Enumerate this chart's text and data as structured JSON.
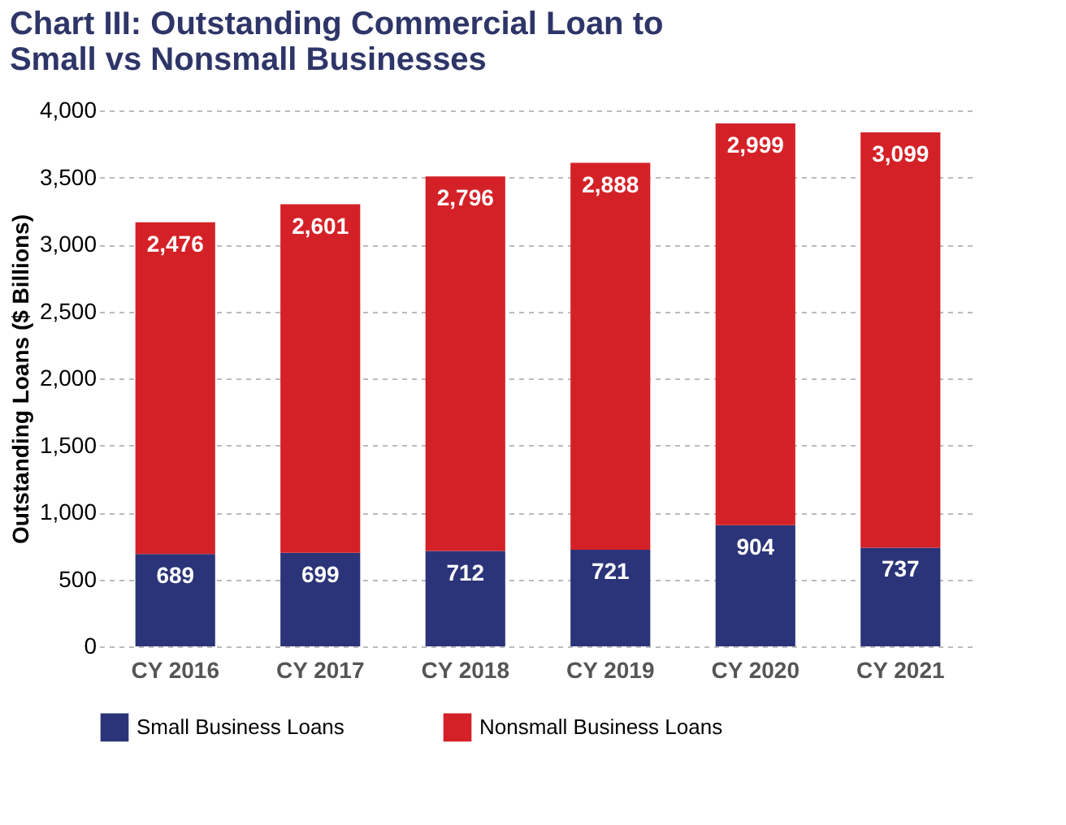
{
  "chart_data": {
    "type": "bar",
    "title": "Chart III: Outstanding Commercial Loan to Small vs Nonsmall Businesses",
    "ylabel": "Outstanding Loans ($ Billions)",
    "categories": [
      "CY 2016",
      "CY 2017",
      "CY 2018",
      "CY 2019",
      "CY 2020",
      "CY 2021"
    ],
    "series": [
      {
        "name": "Small Business Loans",
        "color": "#2b3478",
        "values": [
          689,
          699,
          712,
          721,
          904,
          737
        ],
        "value_labels": [
          "689",
          "699",
          "712",
          "721",
          "904",
          "737"
        ]
      },
      {
        "name": "Nonsmall Business Loans",
        "color": "#d42127",
        "values": [
          2476,
          2601,
          2796,
          2888,
          2999,
          3099
        ],
        "value_labels": [
          "2,476",
          "2,601",
          "2,796",
          "2,888",
          "2,999",
          "3,099"
        ]
      }
    ],
    "stacked": true,
    "ylim": [
      0,
      4000
    ],
    "yticks": [
      0,
      500,
      {
        "value": 1000,
        "label": "1,000"
      },
      {
        "value": 1500,
        "label": "1,500"
      },
      {
        "value": 2000,
        "label": "2,000"
      },
      {
        "value": 2500,
        "label": "2,500"
      },
      {
        "value": 3000,
        "label": "3,000"
      },
      {
        "value": 3500,
        "label": "3,500"
      },
      {
        "value": 4000,
        "label": "4,000"
      }
    ],
    "grid": "y",
    "legend": "bottom"
  }
}
